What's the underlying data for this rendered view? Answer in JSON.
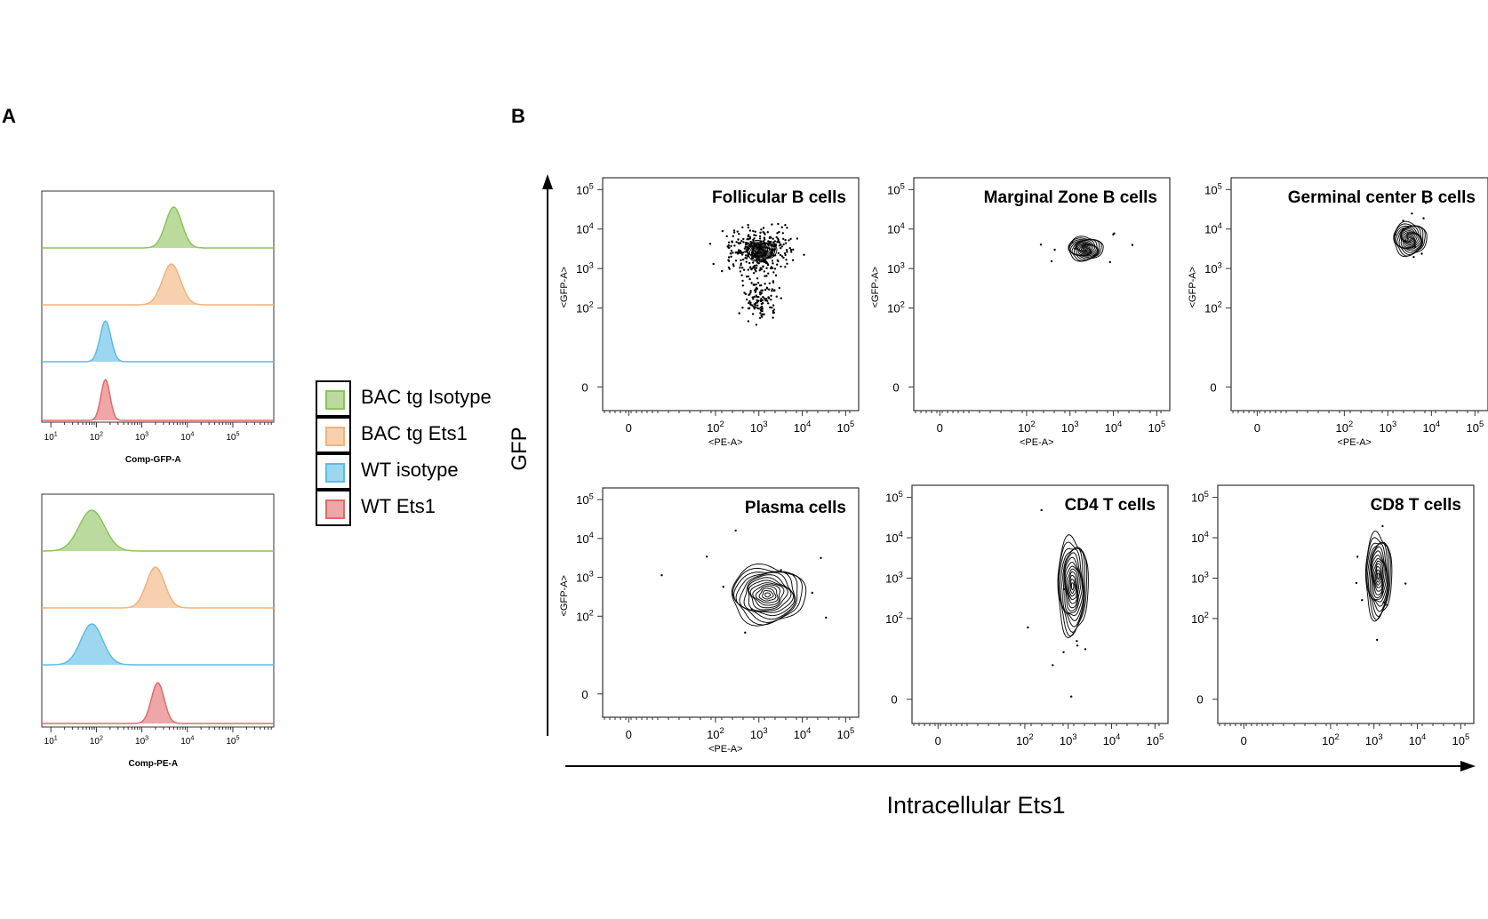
{
  "panel_labels": {
    "a": "A",
    "b": "B"
  },
  "colors": {
    "green": "#8cc35c",
    "orange": "#f2b27a",
    "blue": "#5bbde4",
    "red": "#e26a6a"
  },
  "legend": [
    {
      "label": "BAC tg Isotype",
      "color": "#8cc35c"
    },
    {
      "label": "BAC tg Ets1",
      "color": "#f2b27a"
    },
    {
      "label": "WT isotype",
      "color": "#5bbde4"
    },
    {
      "label": "WT Ets1",
      "color": "#e26a6a"
    }
  ],
  "axis_titles": {
    "y": "GFP",
    "x": "Intracellular Ets1"
  },
  "chart_data": [
    {
      "type": "area",
      "panel": "A",
      "xlabel": "Comp-GFP-A",
      "xscale": "log",
      "xticks": [
        "10^1",
        "10^2",
        "10^3",
        "10^4",
        "10^5"
      ],
      "series": [
        {
          "name": "BAC tg Isotype",
          "peak_log10": 3.7,
          "width_log10": 0.18,
          "color": "#8cc35c"
        },
        {
          "name": "BAC tg Ets1",
          "peak_log10": 3.65,
          "width_log10": 0.2,
          "color": "#f2b27a"
        },
        {
          "name": "WT isotype",
          "peak_log10": 2.2,
          "width_log10": 0.12,
          "color": "#5bbde4"
        },
        {
          "name": "WT Ets1",
          "peak_log10": 2.2,
          "width_log10": 0.1,
          "color": "#e26a6a"
        }
      ]
    },
    {
      "type": "area",
      "panel": "A",
      "xlabel": "Comp-PE-A",
      "xscale": "log",
      "xticks": [
        "10^1",
        "10^2",
        "10^3",
        "10^4",
        "10^5"
      ],
      "series": [
        {
          "name": "BAC tg Isotype",
          "peak_log10": 1.9,
          "width_log10": 0.28,
          "color": "#8cc35c"
        },
        {
          "name": "BAC tg Ets1",
          "peak_log10": 3.3,
          "width_log10": 0.2,
          "color": "#f2b27a"
        },
        {
          "name": "WT isotype",
          "peak_log10": 1.9,
          "width_log10": 0.24,
          "color": "#5bbde4"
        },
        {
          "name": "WT Ets1",
          "peak_log10": 3.35,
          "width_log10": 0.14,
          "color": "#e26a6a"
        }
      ]
    },
    {
      "type": "scatter",
      "panel": "B",
      "title": "Follicular B cells",
      "xlabel": "<PE-A>",
      "ylabel": "<GFP-A>",
      "xticks": [
        "0",
        "10^2",
        "10^3",
        "10^4",
        "10^5"
      ],
      "yticks": [
        "0",
        "10^2",
        "10^3",
        "10^4",
        "10^5"
      ],
      "contour_center_log10": [
        3.05,
        3.45
      ],
      "contour_spread_log10": [
        0.35,
        0.25
      ],
      "show_outliers": true
    },
    {
      "type": "scatter",
      "panel": "B",
      "title": "Marginal Zone B cells",
      "xlabel": "<PE-A>",
      "ylabel": "<GFP-A>",
      "xticks": [
        "0",
        "10^2",
        "10^3",
        "10^4",
        "10^5"
      ],
      "yticks": [
        "0",
        "10^2",
        "10^3",
        "10^4",
        "10^5"
      ],
      "contour_center_log10": [
        3.35,
        3.5
      ],
      "contour_spread_log10": [
        0.4,
        0.3
      ]
    },
    {
      "type": "scatter",
      "panel": "B",
      "title": "Germinal center B cells",
      "xlabel": "<PE-A>",
      "ylabel": "<GFP-A>",
      "xticks": [
        "0",
        "10^2",
        "10^3",
        "10^4",
        "10^5"
      ],
      "yticks": [
        "0",
        "10^2",
        "10^3",
        "10^4",
        "10^5"
      ],
      "contour_center_log10": [
        3.5,
        3.75
      ],
      "contour_spread_log10": [
        0.38,
        0.42
      ]
    },
    {
      "type": "scatter",
      "panel": "B",
      "title": "Plasma cells",
      "xlabel": "<PE-A>",
      "ylabel": "<GFP-A>",
      "xticks": [
        "0",
        "10^2",
        "10^3",
        "10^4",
        "10^5"
      ],
      "yticks": [
        "0",
        "10^2",
        "10^3",
        "10^4",
        "10^5"
      ],
      "contour_center_log10": [
        3.2,
        2.55
      ],
      "contour_spread_log10": [
        0.85,
        0.75
      ]
    },
    {
      "type": "scatter",
      "panel": "B",
      "title": "CD4 T cells",
      "xlabel": "",
      "ylabel": "",
      "xticks": [
        "0",
        "10^2",
        "10^3",
        "10^4",
        "10^5"
      ],
      "yticks": [
        "0",
        "10^2",
        "10^3",
        "10^4",
        "10^5"
      ],
      "contour_center_log10": [
        3.1,
        2.8
      ],
      "contour_spread_log10": [
        0.35,
        1.2
      ]
    },
    {
      "type": "scatter",
      "panel": "B",
      "title": "CD8 T cells",
      "xlabel": "",
      "ylabel": "",
      "xticks": [
        "0",
        "10^2",
        "10^3",
        "10^4",
        "10^5"
      ],
      "yticks": [
        "0",
        "10^2",
        "10^3",
        "10^4",
        "10^5"
      ],
      "contour_center_log10": [
        3.1,
        3.05
      ],
      "contour_spread_log10": [
        0.3,
        1.05
      ]
    }
  ]
}
